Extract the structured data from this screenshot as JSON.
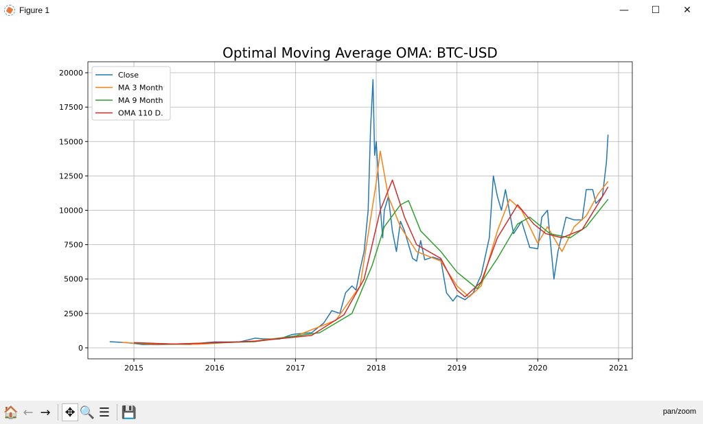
{
  "window": {
    "title": "Figure 1",
    "minimize": "—",
    "maximize": "☐",
    "close": "✕"
  },
  "toolbar": {
    "home": "🏠",
    "back": "←",
    "forward": "→",
    "pan": "✥",
    "zoom": "🔍",
    "configure": "☰",
    "save": "💾",
    "status": "pan/zoom"
  },
  "chart_data": {
    "type": "line",
    "title": "Optimal Moving Average OMA: BTC-USD",
    "xlabel": "",
    "ylabel": "",
    "xlim": [
      2014.43,
      2021.17
    ],
    "ylim": [
      -800,
      20800
    ],
    "xticks": [
      2015,
      2016,
      2017,
      2018,
      2019,
      2020,
      2021
    ],
    "xtick_labels": [
      "2015",
      "2016",
      "2017",
      "2018",
      "2019",
      "2020",
      "2021"
    ],
    "yticks": [
      0,
      2500,
      5000,
      7500,
      10000,
      12500,
      15000,
      17500,
      20000
    ],
    "ytick_labels": [
      "0",
      "2500",
      "5000",
      "7500",
      "10000",
      "12500",
      "15000",
      "17500",
      "20000"
    ],
    "grid": true,
    "legend_position": "top-left",
    "series": [
      {
        "name": "Close",
        "color": "#1f77b4",
        "points": [
          [
            2014.7,
            450
          ],
          [
            2014.9,
            380
          ],
          [
            2015.0,
            320
          ],
          [
            2015.1,
            240
          ],
          [
            2015.3,
            230
          ],
          [
            2015.5,
            260
          ],
          [
            2015.7,
            240
          ],
          [
            2015.9,
            380
          ],
          [
            2016.0,
            430
          ],
          [
            2016.3,
            420
          ],
          [
            2016.5,
            700
          ],
          [
            2016.6,
            650
          ],
          [
            2016.8,
            640
          ],
          [
            2016.95,
            950
          ],
          [
            2017.0,
            1000
          ],
          [
            2017.2,
            1100
          ],
          [
            2017.35,
            1800
          ],
          [
            2017.45,
            2700
          ],
          [
            2017.55,
            2500
          ],
          [
            2017.62,
            4000
          ],
          [
            2017.7,
            4500
          ],
          [
            2017.75,
            4200
          ],
          [
            2017.8,
            5700
          ],
          [
            2017.85,
            7000
          ],
          [
            2017.9,
            10000
          ],
          [
            2017.93,
            16000
          ],
          [
            2017.96,
            19500
          ],
          [
            2017.98,
            14000
          ],
          [
            2018.0,
            15000
          ],
          [
            2018.04,
            11000
          ],
          [
            2018.08,
            8000
          ],
          [
            2018.1,
            10000
          ],
          [
            2018.15,
            11000
          ],
          [
            2018.2,
            8500
          ],
          [
            2018.25,
            7000
          ],
          [
            2018.3,
            9200
          ],
          [
            2018.35,
            8500
          ],
          [
            2018.45,
            6500
          ],
          [
            2018.5,
            6300
          ],
          [
            2018.55,
            7800
          ],
          [
            2018.6,
            6400
          ],
          [
            2018.7,
            6600
          ],
          [
            2018.8,
            6400
          ],
          [
            2018.87,
            4000
          ],
          [
            2018.95,
            3400
          ],
          [
            2019.0,
            3800
          ],
          [
            2019.1,
            3500
          ],
          [
            2019.2,
            4000
          ],
          [
            2019.3,
            5300
          ],
          [
            2019.4,
            8000
          ],
          [
            2019.45,
            12500
          ],
          [
            2019.5,
            11000
          ],
          [
            2019.55,
            10000
          ],
          [
            2019.6,
            11500
          ],
          [
            2019.7,
            8300
          ],
          [
            2019.8,
            9200
          ],
          [
            2019.9,
            7300
          ],
          [
            2020.0,
            7200
          ],
          [
            2020.05,
            9500
          ],
          [
            2020.12,
            10000
          ],
          [
            2020.2,
            5000
          ],
          [
            2020.25,
            7000
          ],
          [
            2020.35,
            9500
          ],
          [
            2020.45,
            9300
          ],
          [
            2020.55,
            9300
          ],
          [
            2020.6,
            11500
          ],
          [
            2020.68,
            11500
          ],
          [
            2020.72,
            10500
          ],
          [
            2020.8,
            11000
          ],
          [
            2020.85,
            13500
          ],
          [
            2020.87,
            15500
          ]
        ]
      },
      {
        "name": "MA 3 Month",
        "color": "#ff7f0e",
        "points": [
          [
            2014.85,
            400
          ],
          [
            2015.2,
            260
          ],
          [
            2015.8,
            260
          ],
          [
            2016.5,
            500
          ],
          [
            2017.0,
            850
          ],
          [
            2017.5,
            2000
          ],
          [
            2017.8,
            4500
          ],
          [
            2018.0,
            12000
          ],
          [
            2018.05,
            14300
          ],
          [
            2018.15,
            11000
          ],
          [
            2018.3,
            8800
          ],
          [
            2018.5,
            7000
          ],
          [
            2018.8,
            6300
          ],
          [
            2019.0,
            4500
          ],
          [
            2019.15,
            3700
          ],
          [
            2019.3,
            4500
          ],
          [
            2019.5,
            8500
          ],
          [
            2019.65,
            10800
          ],
          [
            2019.8,
            10000
          ],
          [
            2020.0,
            7600
          ],
          [
            2020.12,
            8800
          ],
          [
            2020.3,
            7000
          ],
          [
            2020.45,
            8800
          ],
          [
            2020.6,
            9600
          ],
          [
            2020.75,
            11200
          ],
          [
            2020.87,
            12100
          ]
        ]
      },
      {
        "name": "MA 9 Month",
        "color": "#2ca02c",
        "points": [
          [
            2015.0,
            350
          ],
          [
            2015.5,
            280
          ],
          [
            2016.5,
            450
          ],
          [
            2017.3,
            1100
          ],
          [
            2017.7,
            2500
          ],
          [
            2017.95,
            6000
          ],
          [
            2018.1,
            8800
          ],
          [
            2018.3,
            10400
          ],
          [
            2018.4,
            10700
          ],
          [
            2018.55,
            8500
          ],
          [
            2018.8,
            7000
          ],
          [
            2019.0,
            5500
          ],
          [
            2019.25,
            4300
          ],
          [
            2019.5,
            6500
          ],
          [
            2019.75,
            9000
          ],
          [
            2019.9,
            9500
          ],
          [
            2020.15,
            8300
          ],
          [
            2020.4,
            8000
          ],
          [
            2020.6,
            8800
          ],
          [
            2020.87,
            10800
          ]
        ]
      },
      {
        "name": "OMA 110 D.",
        "color": "#d62728",
        "points": [
          [
            2015.0,
            380
          ],
          [
            2015.5,
            270
          ],
          [
            2016.5,
            480
          ],
          [
            2017.2,
            900
          ],
          [
            2017.6,
            2400
          ],
          [
            2017.85,
            5000
          ],
          [
            2018.05,
            10000
          ],
          [
            2018.2,
            12200
          ],
          [
            2018.35,
            9500
          ],
          [
            2018.5,
            7500
          ],
          [
            2018.8,
            6500
          ],
          [
            2019.0,
            4200
          ],
          [
            2019.1,
            3700
          ],
          [
            2019.3,
            4800
          ],
          [
            2019.5,
            8000
          ],
          [
            2019.75,
            10400
          ],
          [
            2019.95,
            9000
          ],
          [
            2020.1,
            8300
          ],
          [
            2020.3,
            8000
          ],
          [
            2020.55,
            8600
          ],
          [
            2020.75,
            10500
          ],
          [
            2020.87,
            11700
          ]
        ]
      }
    ]
  }
}
